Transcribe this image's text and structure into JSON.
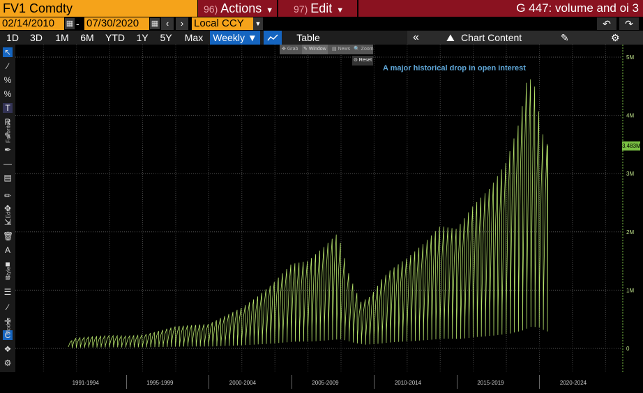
{
  "header": {
    "ticker": "FV1 Comdty",
    "actions": {
      "num": "96)",
      "label": "Actions"
    },
    "edit": {
      "num": "97)",
      "label": "Edit"
    },
    "title": "G 447: volume and oi 3"
  },
  "date_range": {
    "start": "02/14/2010",
    "separator": "-",
    "end": "07/30/2020",
    "currency": "Local CCY"
  },
  "ranges": [
    "1D",
    "3D",
    "1M",
    "6M",
    "YTD",
    "1Y",
    "5Y",
    "Max"
  ],
  "period": "Weekly",
  "table_label": "Table",
  "chart_content_label": "Chart Content",
  "toolbar": {
    "favorites_label": "Favorites",
    "edit_label": "Edit",
    "style_label": "Style",
    "modes_label": "Modes"
  },
  "zoom_toolbar": {
    "grab": "Grab",
    "window": "Window",
    "news": "News",
    "zoom": "Zoom",
    "reset": "Reset"
  },
  "colors": {
    "accent_orange": "#f5a31a",
    "menu_red": "#8a1220",
    "line_green": "#b5e26a",
    "annotation_blue": "#5fa7d8"
  },
  "chart_data": {
    "type": "line",
    "title": "",
    "annotation": "A major historical drop in open interest",
    "ylabel": "",
    "xlabel": "",
    "y_ticks": [
      {
        "label": "0",
        "value": 0
      },
      {
        "label": "1M",
        "value": 1000000
      },
      {
        "label": "2M",
        "value": 2000000
      },
      {
        "label": "3M",
        "value": 3000000
      },
      {
        "label": "4M",
        "value": 4000000
      },
      {
        "label": "5M",
        "value": 5000000
      }
    ],
    "ylim": [
      0,
      5000000
    ],
    "x_labels": [
      "1991-1994",
      "1995-1999",
      "2000-2004",
      "2005-2009",
      "2010-2014",
      "2015-2019",
      "2020-2024"
    ],
    "last_value_label": "3.483M",
    "last_value": 3483000,
    "grid": true,
    "series": [
      {
        "values": [
          {
            "x": 1991.5,
            "y": 100000
          },
          {
            "x": 1992.0,
            "y": 180000
          },
          {
            "x": 1993.0,
            "y": 200000
          },
          {
            "x": 1994.0,
            "y": 220000
          },
          {
            "x": 1995.0,
            "y": 210000
          },
          {
            "x": 1996.0,
            "y": 230000
          },
          {
            "x": 1997.0,
            "y": 300000
          },
          {
            "x": 1998.0,
            "y": 380000
          },
          {
            "x": 1999.0,
            "y": 400000
          },
          {
            "x": 2000.0,
            "y": 420000
          },
          {
            "x": 2001.0,
            "y": 560000
          },
          {
            "x": 2002.0,
            "y": 700000
          },
          {
            "x": 2003.0,
            "y": 900000
          },
          {
            "x": 2004.0,
            "y": 1150000
          },
          {
            "x": 2005.0,
            "y": 1450000
          },
          {
            "x": 2006.0,
            "y": 1500000
          },
          {
            "x": 2007.0,
            "y": 1750000
          },
          {
            "x": 2007.8,
            "y": 1980000
          },
          {
            "x": 2008.5,
            "y": 1250000
          },
          {
            "x": 2009.2,
            "y": 800000
          },
          {
            "x": 2009.8,
            "y": 900000
          },
          {
            "x": 2010.5,
            "y": 1200000
          },
          {
            "x": 2011.0,
            "y": 1350000
          },
          {
            "x": 2012.0,
            "y": 1550000
          },
          {
            "x": 2013.0,
            "y": 1800000
          },
          {
            "x": 2014.0,
            "y": 2100000
          },
          {
            "x": 2015.0,
            "y": 2050000
          },
          {
            "x": 2016.0,
            "y": 2450000
          },
          {
            "x": 2017.0,
            "y": 2750000
          },
          {
            "x": 2018.0,
            "y": 3200000
          },
          {
            "x": 2018.8,
            "y": 3900000
          },
          {
            "x": 2019.3,
            "y": 4700000
          },
          {
            "x": 2019.8,
            "y": 4450000
          },
          {
            "x": 2020.1,
            "y": 3750000
          },
          {
            "x": 2020.5,
            "y": 3483000
          }
        ]
      }
    ]
  }
}
